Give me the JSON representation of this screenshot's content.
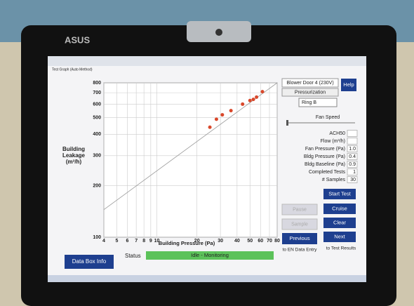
{
  "brand": "ASUS",
  "window": {
    "title": "Test Graph (Auto Method)"
  },
  "graph": {
    "type": "scatter",
    "x_label": "Building Pressure (Pa)",
    "y_label": "Building Leakage (m³/h)",
    "x": [
      25,
      28,
      31,
      36,
      44,
      50,
      53,
      56,
      62
    ],
    "values": [
      440,
      490,
      520,
      550,
      600,
      630,
      640,
      660,
      710
    ],
    "color": "#d9482b",
    "fit": {
      "x": [
        4,
        80
      ],
      "values": [
        145,
        800
      ],
      "color": "#9a9a9a"
    },
    "log_x": true,
    "log_y": true,
    "grid": true,
    "xlim": [
      4,
      80
    ],
    "ylim": [
      100,
      800
    ],
    "xticks": [
      4,
      5,
      6,
      7,
      8,
      9,
      10,
      20,
      30,
      40,
      50,
      60,
      70,
      80
    ],
    "yticks": [
      100,
      200,
      300,
      400,
      500,
      600,
      700,
      800
    ]
  },
  "panel": {
    "device": "Blower Door 4 (230V)",
    "help": "Help",
    "mode": "Pressurization",
    "ring": "Ring B",
    "fan_speed": "Fan Speed",
    "readings": [
      {
        "label": "ACH50",
        "value": ""
      },
      {
        "label": "Flow (m³/h)",
        "value": ""
      },
      {
        "label": "Fan Pressure (Pa)",
        "value": "1.0"
      },
      {
        "label": "Bldg Pressure (Pa)",
        "value": "0.4"
      },
      {
        "label": "Bldg Baseline (Pa)",
        "value": "0.9"
      },
      {
        "label": "Completed Tests",
        "value": "1"
      },
      {
        "label": "# Samples",
        "value": "30"
      }
    ],
    "buttons": {
      "start": "Start Test",
      "pause": "Pause",
      "cruise": "Cruise",
      "sample": "Sample",
      "clear": "Clear",
      "previous": "Previous",
      "next": "Next"
    },
    "previous_caption": "to EN Data Entry",
    "next_caption": "to Test Results"
  },
  "footer": {
    "data_box": "Data Box Info",
    "status_label": "Status",
    "status": "Idle - Monitoring"
  }
}
